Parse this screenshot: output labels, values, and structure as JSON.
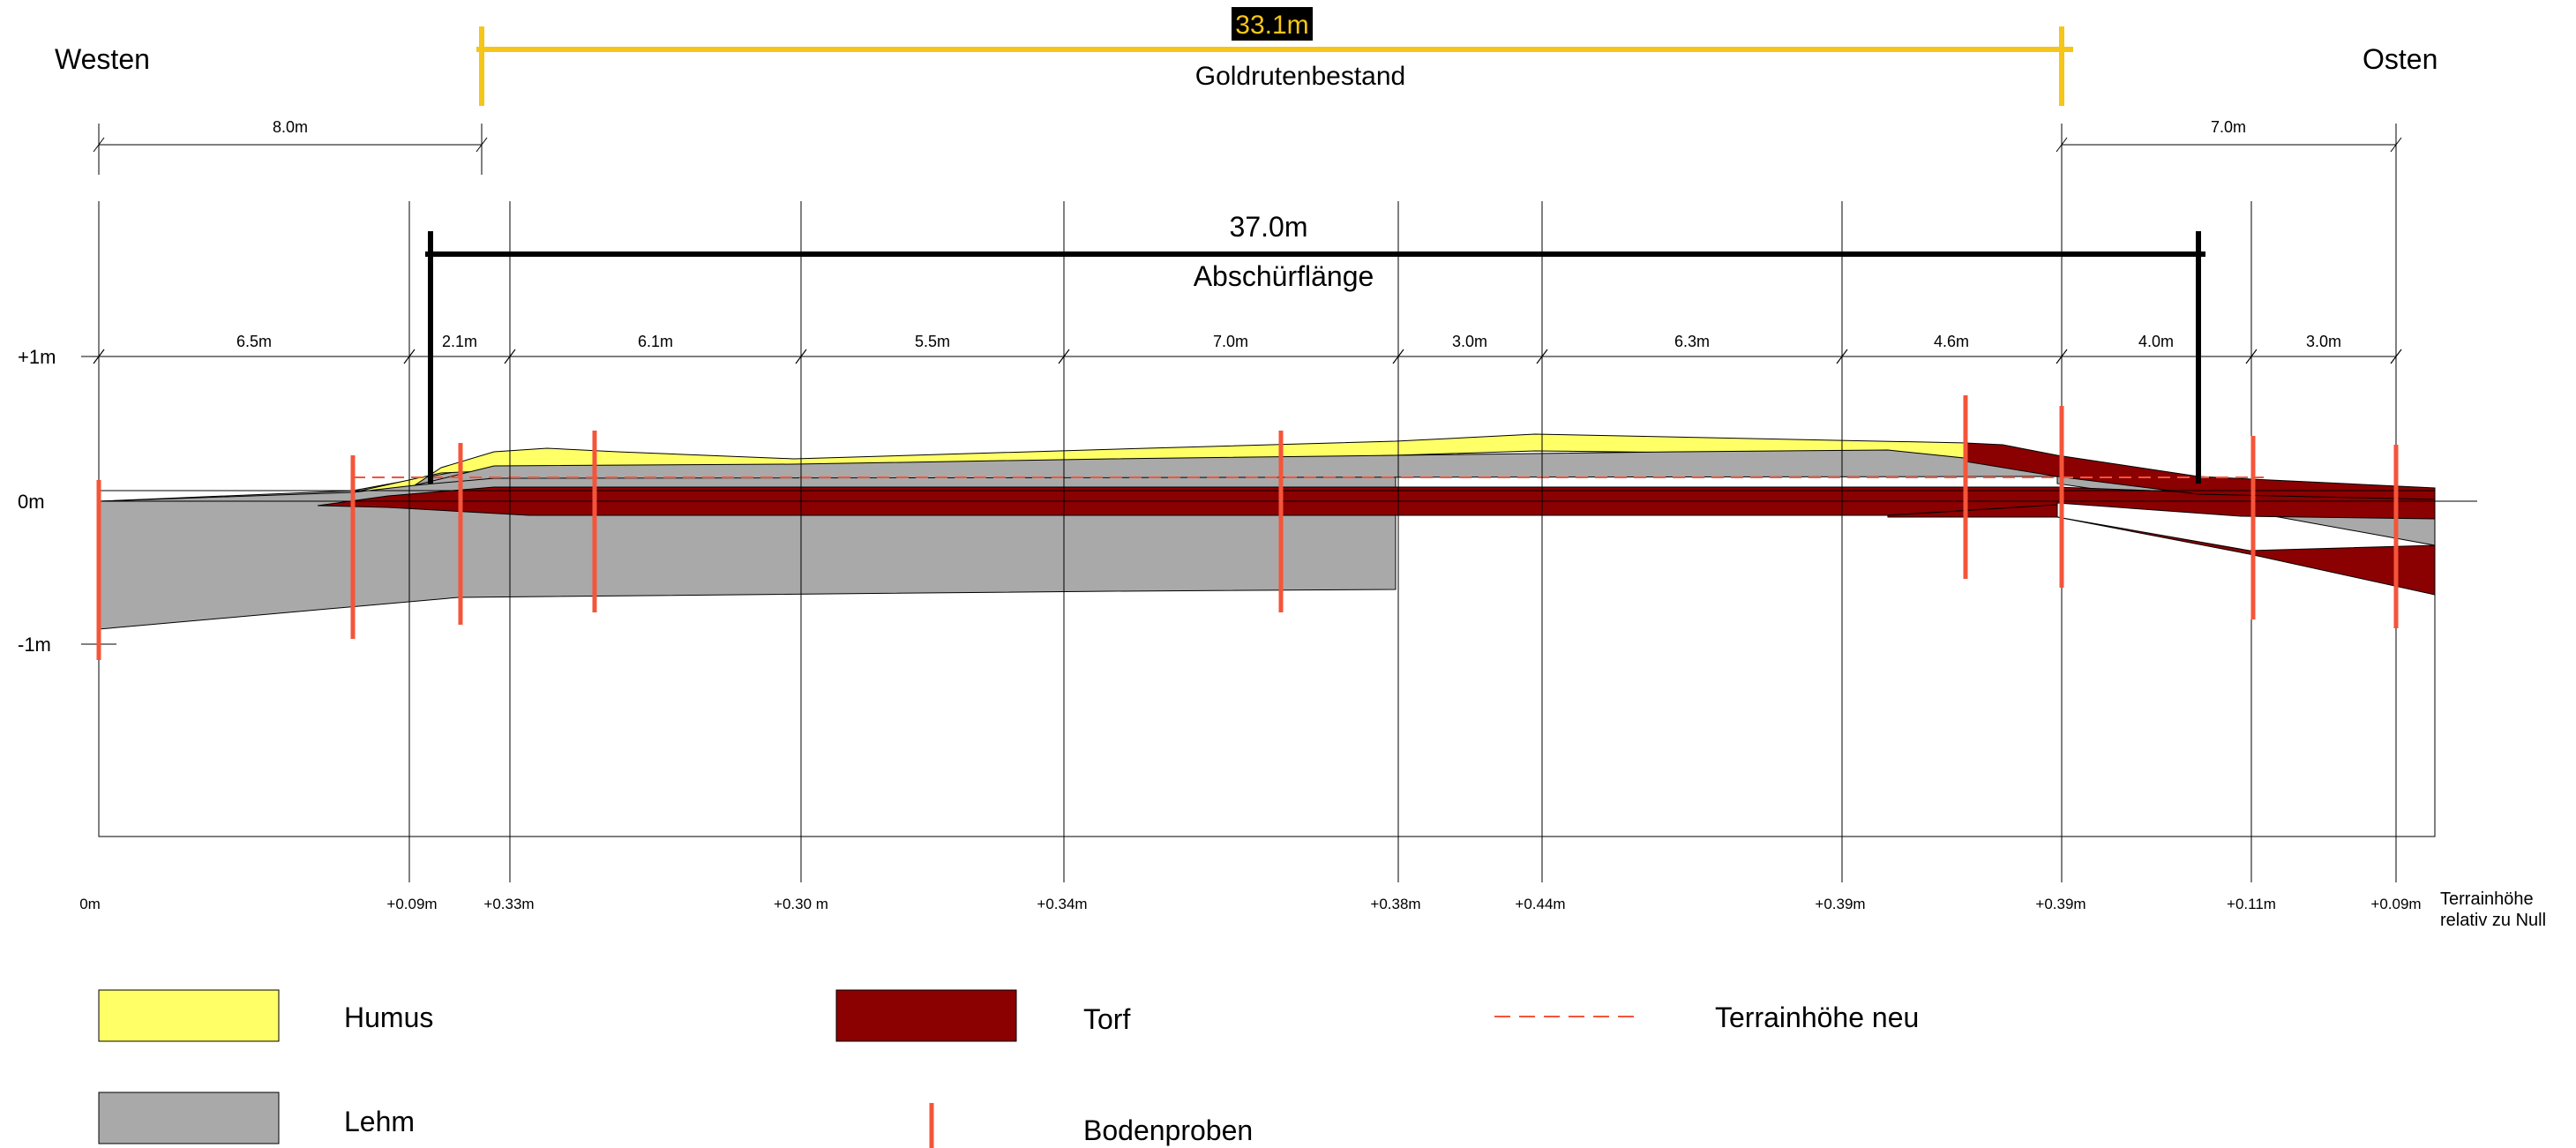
{
  "directions": {
    "west": "Westen",
    "east": "Osten"
  },
  "goldrute": {
    "length": "33.1m",
    "label": "Goldrutenbestand"
  },
  "abschuerf": {
    "length": "37.0m",
    "label": "Abschürflänge"
  },
  "outer_dims": {
    "west": "8.0m",
    "east": "7.0m"
  },
  "y_axis": {
    "plus1": "+1m",
    "zero": "0m",
    "minus1": "-1m"
  },
  "segments": [
    "6.5m",
    "2.1m",
    "6.1m",
    "5.5m",
    "7.0m",
    "3.0m",
    "6.3m",
    "4.6m",
    "4.0m",
    "3.0m"
  ],
  "heights": [
    "0m",
    "+0.09m",
    "+0.33m",
    "+0.30 m",
    "+0.34m",
    "+0.38m",
    "+0.44m",
    "+0.39m",
    "+0.39m",
    "+0.11m",
    "+0.09m"
  ],
  "height_caption": {
    "line1": "Terrainhöhe",
    "line2": "relativ zu Null"
  },
  "legend": {
    "humus": "Humus",
    "torf": "Torf",
    "terrain": "Terrainhöhe neu",
    "lehm": "Lehm",
    "proben": "Bodenproben"
  },
  "colors": {
    "humus": "#ffff66",
    "lehm": "#a9a9a9",
    "torf": "#8b0000",
    "probe": "#f4553a",
    "goldrute": "#f5c518",
    "line": "#000000"
  }
}
